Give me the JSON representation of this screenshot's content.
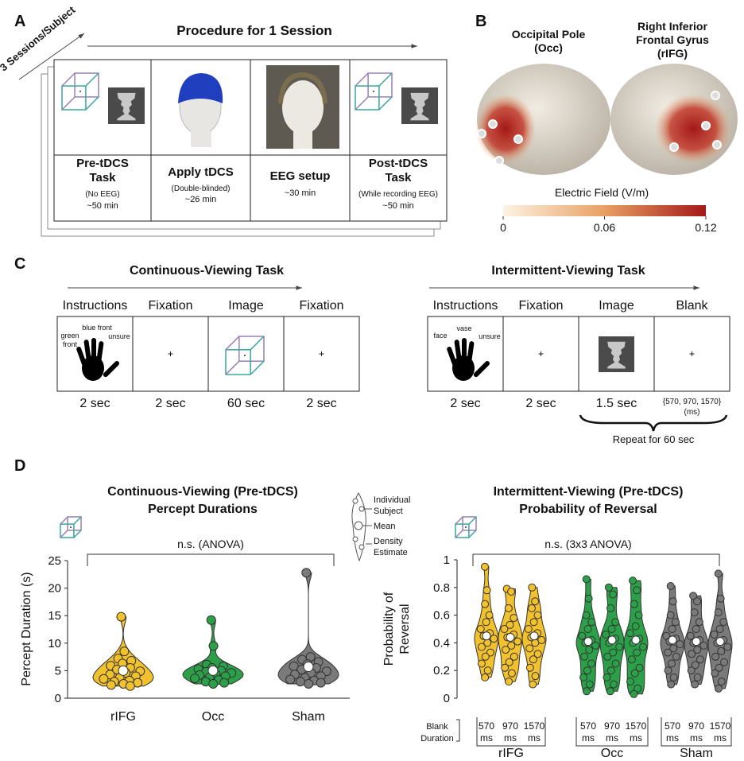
{
  "panel_labels": [
    "A",
    "B",
    "C",
    "D"
  ],
  "panel_a": {
    "sessions": "3 Sessions/Subject",
    "title": "Procedure for 1 Session",
    "steps": [
      {
        "title": [
          "Pre-tDCS",
          "Task"
        ],
        "note": "(No EEG)",
        "time": "~50 min"
      },
      {
        "title": [
          "Apply tDCS"
        ],
        "note": "(Double-blinded)",
        "time": "~26 min"
      },
      {
        "title": [
          "EEG setup"
        ],
        "time": "~30 min"
      },
      {
        "title": [
          "Post-tDCS",
          "Task"
        ],
        "note": "(While recording EEG)",
        "time": "~50 min"
      }
    ]
  },
  "panel_b": {
    "sites": [
      {
        "name": [
          "Occipital Pole",
          "(Occ)"
        ]
      },
      {
        "name": [
          "Right Inferior",
          "Frontal Gyrus",
          "(rIFG)"
        ]
      }
    ],
    "colorbar": {
      "label": "Electric Field (V/m)",
      "lim": [
        0,
        0.12
      ],
      "ticks": [
        0,
        0.06,
        0.12
      ],
      "colors": [
        "#fdf3e3",
        "#e9a063",
        "#a31818"
      ]
    }
  },
  "panel_c": {
    "tasks": [
      {
        "title": "Continuous-Viewing Task",
        "steps": [
          "Instructions",
          "Fixation",
          "Image",
          "Fixation"
        ],
        "durations": [
          "2 sec",
          "2 sec",
          "60 sec",
          "2 sec"
        ],
        "hand_labels": [
          "green",
          "front",
          "blue front",
          "unsure"
        ]
      },
      {
        "title": "Intermittent-Viewing Task",
        "steps": [
          "Instructions",
          "Fixation",
          "Image",
          "Blank"
        ],
        "durations": [
          "2 sec",
          "2 sec",
          "1.5 sec",
          "{570, 970, 1570}"
        ],
        "duration_unit": "(ms)",
        "hand_labels": [
          "face",
          "vase",
          "unsure"
        ],
        "repeat": "Repeat for 60 sec"
      }
    ]
  },
  "chart_data": [
    {
      "type": "violin",
      "title": [
        "Continuous-Viewing (Pre-tDCS)",
        "Percept Durations"
      ],
      "annotation": "n.s. (ANOVA)",
      "y_label": "Percept Duration (s)",
      "categories": [
        "rIFG",
        "Occ",
        "Sham"
      ],
      "colors": [
        "#f2c12e",
        "#2ca048",
        "#7a7a7a"
      ],
      "points": [
        [
          14.8,
          8.5,
          7.2,
          6.8,
          6.3,
          5.9,
          5.5,
          5.2,
          4.9,
          4.6,
          4.3,
          4.0,
          3.7,
          3.5,
          3.2,
          3.0,
          2.8,
          2.6,
          2.4,
          2.2
        ],
        [
          14.2,
          9.5,
          6.1,
          5.8,
          5.5,
          5.3,
          5.0,
          4.8,
          4.6,
          4.4,
          4.2,
          4.0,
          3.8,
          3.6,
          3.3,
          3.0,
          2.8,
          2.6
        ],
        [
          22.8,
          7.5,
          7.0,
          6.6,
          6.2,
          5.8,
          5.5,
          5.2,
          4.9,
          4.6,
          4.3,
          4.0,
          3.7,
          3.4,
          3.2,
          3.0,
          2.8,
          2.6
        ]
      ],
      "means": [
        5.0,
        5.0,
        5.7
      ],
      "ylim": [
        0,
        25
      ],
      "yticks": [
        0,
        5,
        10,
        15,
        20,
        25
      ],
      "legend": {
        "individual": [
          "Individual",
          "Subject"
        ],
        "mean": "Mean",
        "density": [
          "Density",
          "Estimate"
        ]
      }
    },
    {
      "type": "violin",
      "title": [
        "Intermittent-Viewing (Pre-tDCS)",
        "Probability of Reversal"
      ],
      "annotation": "n.s. (3x3 ANOVA)",
      "y_label": [
        "Probability of",
        "Reversal"
      ],
      "x_label": [
        "Blank",
        "Duration"
      ],
      "sub_categories": [
        "570",
        "970",
        "1570"
      ],
      "sub_unit": "ms",
      "series": [
        {
          "name": "rIFG",
          "color": "#f2c12e",
          "means": [
            0.45,
            0.44,
            0.45
          ],
          "points": [
            [
              0.95,
              0.78,
              0.68,
              0.6,
              0.55,
              0.5,
              0.47,
              0.45,
              0.43,
              0.4,
              0.37,
              0.33,
              0.3,
              0.25,
              0.2,
              0.15
            ],
            [
              0.79,
              0.77,
              0.65,
              0.58,
              0.53,
              0.5,
              0.46,
              0.44,
              0.41,
              0.38,
              0.35,
              0.3,
              0.26,
              0.22,
              0.18,
              0.12
            ],
            [
              0.8,
              0.7,
              0.65,
              0.6,
              0.55,
              0.5,
              0.47,
              0.44,
              0.42,
              0.4,
              0.36,
              0.32,
              0.28,
              0.22,
              0.16,
              0.1
            ]
          ]
        },
        {
          "name": "Occ",
          "color": "#2ca048",
          "means": [
            0.41,
            0.42,
            0.42
          ],
          "points": [
            [
              0.86,
              0.72,
              0.6,
              0.55,
              0.5,
              0.45,
              0.42,
              0.4,
              0.38,
              0.35,
              0.3,
              0.25,
              0.2,
              0.15,
              0.1,
              0.05
            ],
            [
              0.8,
              0.75,
              0.65,
              0.55,
              0.5,
              0.46,
              0.43,
              0.4,
              0.37,
              0.33,
              0.3,
              0.25,
              0.2,
              0.15,
              0.1,
              0.05
            ],
            [
              0.85,
              0.78,
              0.68,
              0.6,
              0.52,
              0.47,
              0.43,
              0.4,
              0.37,
              0.33,
              0.28,
              0.22,
              0.18,
              0.12,
              0.07,
              0.03
            ]
          ]
        },
        {
          "name": "Sham",
          "color": "#7a7a7a",
          "means": [
            0.42,
            0.41,
            0.41
          ],
          "points": [
            [
              0.81,
              0.7,
              0.6,
              0.55,
              0.5,
              0.45,
              0.43,
              0.41,
              0.39,
              0.36,
              0.33,
              0.3,
              0.25,
              0.2,
              0.15,
              0.1
            ],
            [
              0.74,
              0.7,
              0.62,
              0.55,
              0.5,
              0.45,
              0.42,
              0.4,
              0.38,
              0.35,
              0.32,
              0.28,
              0.24,
              0.2,
              0.15,
              0.1
            ],
            [
              0.9,
              0.72,
              0.62,
              0.55,
              0.5,
              0.46,
              0.42,
              0.4,
              0.37,
              0.34,
              0.3,
              0.26,
              0.22,
              0.18,
              0.12,
              0.07
            ]
          ]
        }
      ],
      "ylim": [
        0,
        1
      ],
      "yticks": [
        0,
        0.2,
        0.4,
        0.6,
        0.8,
        1
      ]
    }
  ]
}
